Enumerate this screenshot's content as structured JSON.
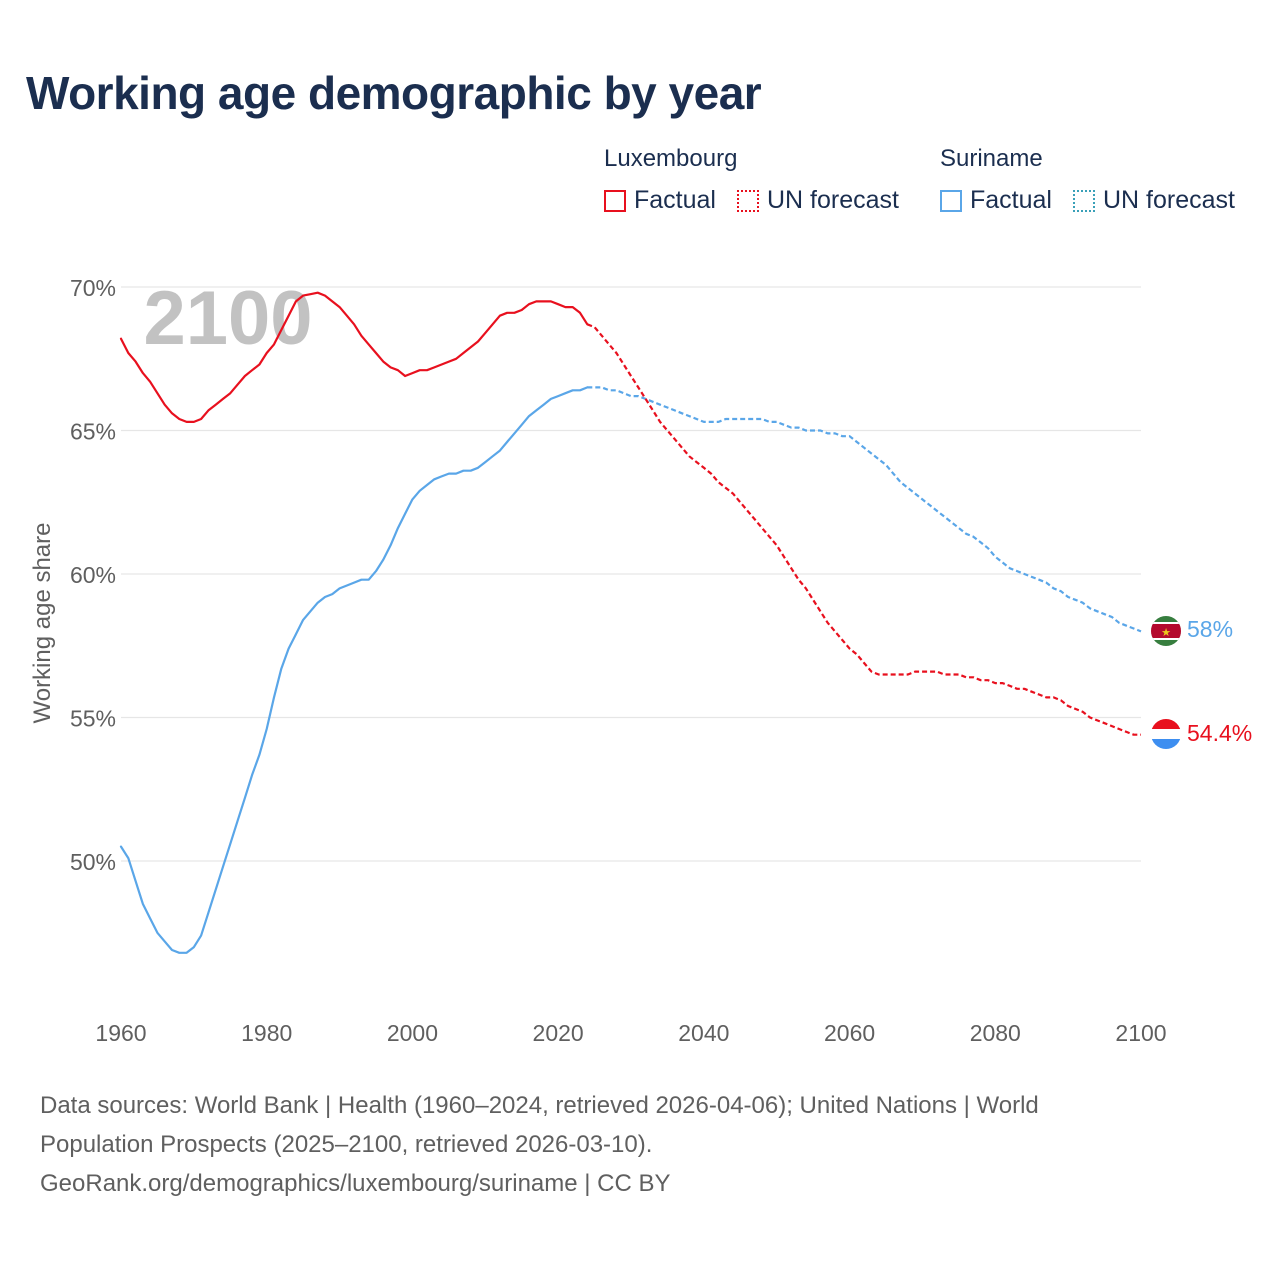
{
  "title": "Working age demographic by year",
  "legend": {
    "groups": [
      {
        "country": "Luxembourg",
        "factual": "Factual",
        "forecast": "UN forecast",
        "color": "#e8101e"
      },
      {
        "country": "Suriname",
        "factual": "Factual",
        "forecast": "UN forecast",
        "color": "#5aa6e8"
      }
    ]
  },
  "chart_data": {
    "type": "line",
    "title": "Working age demographic by year",
    "xlabel": "",
    "ylabel": "Working age share",
    "xlim": [
      1960,
      2100
    ],
    "ylim": [
      45,
      70
    ],
    "grid": true,
    "x_ticks": [
      "1960",
      "1980",
      "2000",
      "2020",
      "2040",
      "2060",
      "2080",
      "2100"
    ],
    "y_ticks": [
      "70%",
      "65%",
      "60%",
      "55%",
      "50%"
    ],
    "y_tick_values": [
      70,
      65,
      60,
      55,
      50
    ],
    "year_watermark": "2100",
    "series": [
      {
        "name": "Luxembourg",
        "color": "#e8101e",
        "end_label": "54.4%",
        "factual": [
          [
            1960,
            68.2
          ],
          [
            1961,
            67.7
          ],
          [
            1962,
            67.4
          ],
          [
            1963,
            67.0
          ],
          [
            1964,
            66.7
          ],
          [
            1965,
            66.3
          ],
          [
            1966,
            65.9
          ],
          [
            1967,
            65.6
          ],
          [
            1968,
            65.4
          ],
          [
            1969,
            65.3
          ],
          [
            1970,
            65.3
          ],
          [
            1971,
            65.4
          ],
          [
            1972,
            65.7
          ],
          [
            1973,
            65.9
          ],
          [
            1974,
            66.1
          ],
          [
            1975,
            66.3
          ],
          [
            1976,
            66.6
          ],
          [
            1977,
            66.9
          ],
          [
            1978,
            67.1
          ],
          [
            1979,
            67.3
          ],
          [
            1980,
            67.7
          ],
          [
            1981,
            68.0
          ],
          [
            1982,
            68.5
          ],
          [
            1983,
            69.0
          ],
          [
            1984,
            69.5
          ],
          [
            1985,
            69.7
          ],
          [
            1986,
            69.75
          ],
          [
            1987,
            69.8
          ],
          [
            1988,
            69.7
          ],
          [
            1989,
            69.5
          ],
          [
            1990,
            69.3
          ],
          [
            1991,
            69.0
          ],
          [
            1992,
            68.7
          ],
          [
            1993,
            68.3
          ],
          [
            1994,
            68.0
          ],
          [
            1995,
            67.7
          ],
          [
            1996,
            67.4
          ],
          [
            1997,
            67.2
          ],
          [
            1998,
            67.1
          ],
          [
            1999,
            66.9
          ],
          [
            2000,
            67.0
          ],
          [
            2001,
            67.1
          ],
          [
            2002,
            67.1
          ],
          [
            2003,
            67.2
          ],
          [
            2004,
            67.3
          ],
          [
            2005,
            67.4
          ],
          [
            2006,
            67.5
          ],
          [
            2007,
            67.7
          ],
          [
            2008,
            67.9
          ],
          [
            2009,
            68.1
          ],
          [
            2010,
            68.4
          ],
          [
            2011,
            68.7
          ],
          [
            2012,
            69.0
          ],
          [
            2013,
            69.1
          ],
          [
            2014,
            69.1
          ],
          [
            2015,
            69.2
          ],
          [
            2016,
            69.4
          ],
          [
            2017,
            69.5
          ],
          [
            2018,
            69.5
          ],
          [
            2019,
            69.5
          ],
          [
            2020,
            69.4
          ],
          [
            2021,
            69.3
          ],
          [
            2022,
            69.3
          ],
          [
            2023,
            69.1
          ],
          [
            2024,
            68.7
          ]
        ],
        "forecast": [
          [
            2024,
            68.7
          ],
          [
            2025,
            68.6
          ],
          [
            2026,
            68.3
          ],
          [
            2027,
            68.0
          ],
          [
            2028,
            67.7
          ],
          [
            2029,
            67.3
          ],
          [
            2030,
            66.9
          ],
          [
            2031,
            66.5
          ],
          [
            2032,
            66.1
          ],
          [
            2033,
            65.7
          ],
          [
            2034,
            65.3
          ],
          [
            2035,
            65.0
          ],
          [
            2036,
            64.7
          ],
          [
            2037,
            64.4
          ],
          [
            2038,
            64.1
          ],
          [
            2039,
            63.9
          ],
          [
            2040,
            63.7
          ],
          [
            2041,
            63.5
          ],
          [
            2042,
            63.2
          ],
          [
            2043,
            63.0
          ],
          [
            2044,
            62.8
          ],
          [
            2045,
            62.5
          ],
          [
            2046,
            62.2
          ],
          [
            2047,
            61.9
          ],
          [
            2048,
            61.6
          ],
          [
            2049,
            61.3
          ],
          [
            2050,
            61.0
          ],
          [
            2051,
            60.6
          ],
          [
            2052,
            60.2
          ],
          [
            2053,
            59.8
          ],
          [
            2054,
            59.5
          ],
          [
            2055,
            59.1
          ],
          [
            2056,
            58.7
          ],
          [
            2057,
            58.3
          ],
          [
            2058,
            58.0
          ],
          [
            2059,
            57.7
          ],
          [
            2060,
            57.4
          ],
          [
            2061,
            57.2
          ],
          [
            2062,
            56.9
          ],
          [
            2063,
            56.6
          ],
          [
            2064,
            56.5
          ],
          [
            2065,
            56.5
          ],
          [
            2066,
            56.5
          ],
          [
            2067,
            56.5
          ],
          [
            2068,
            56.5
          ],
          [
            2069,
            56.6
          ],
          [
            2070,
            56.6
          ],
          [
            2071,
            56.6
          ],
          [
            2072,
            56.6
          ],
          [
            2073,
            56.5
          ],
          [
            2074,
            56.5
          ],
          [
            2075,
            56.5
          ],
          [
            2076,
            56.4
          ],
          [
            2077,
            56.4
          ],
          [
            2078,
            56.3
          ],
          [
            2079,
            56.3
          ],
          [
            2080,
            56.2
          ],
          [
            2081,
            56.2
          ],
          [
            2082,
            56.1
          ],
          [
            2083,
            56.0
          ],
          [
            2084,
            56.0
          ],
          [
            2085,
            55.9
          ],
          [
            2086,
            55.8
          ],
          [
            2087,
            55.7
          ],
          [
            2088,
            55.7
          ],
          [
            2089,
            55.6
          ],
          [
            2090,
            55.4
          ],
          [
            2091,
            55.3
          ],
          [
            2092,
            55.2
          ],
          [
            2093,
            55.0
          ],
          [
            2094,
            54.9
          ],
          [
            2095,
            54.8
          ],
          [
            2096,
            54.7
          ],
          [
            2097,
            54.6
          ],
          [
            2098,
            54.5
          ],
          [
            2099,
            54.4
          ],
          [
            2100,
            54.4
          ]
        ]
      },
      {
        "name": "Suriname",
        "color": "#5aa6e8",
        "end_label": "58%",
        "factual": [
          [
            1960,
            50.5
          ],
          [
            1961,
            50.1
          ],
          [
            1962,
            49.3
          ],
          [
            1963,
            48.5
          ],
          [
            1964,
            48.0
          ],
          [
            1965,
            47.5
          ],
          [
            1966,
            47.2
          ],
          [
            1967,
            46.9
          ],
          [
            1968,
            46.8
          ],
          [
            1969,
            46.8
          ],
          [
            1970,
            47.0
          ],
          [
            1971,
            47.4
          ],
          [
            1972,
            48.2
          ],
          [
            1973,
            49.0
          ],
          [
            1974,
            49.8
          ],
          [
            1975,
            50.6
          ],
          [
            1976,
            51.4
          ],
          [
            1977,
            52.2
          ],
          [
            1978,
            53.0
          ],
          [
            1979,
            53.7
          ],
          [
            1980,
            54.6
          ],
          [
            1981,
            55.7
          ],
          [
            1982,
            56.7
          ],
          [
            1983,
            57.4
          ],
          [
            1984,
            57.9
          ],
          [
            1985,
            58.4
          ],
          [
            1986,
            58.7
          ],
          [
            1987,
            59.0
          ],
          [
            1988,
            59.2
          ],
          [
            1989,
            59.3
          ],
          [
            1990,
            59.5
          ],
          [
            1991,
            59.6
          ],
          [
            1992,
            59.7
          ],
          [
            1993,
            59.8
          ],
          [
            1994,
            59.8
          ],
          [
            1995,
            60.1
          ],
          [
            1996,
            60.5
          ],
          [
            1997,
            61.0
          ],
          [
            1998,
            61.6
          ],
          [
            1999,
            62.1
          ],
          [
            2000,
            62.6
          ],
          [
            2001,
            62.9
          ],
          [
            2002,
            63.1
          ],
          [
            2003,
            63.3
          ],
          [
            2004,
            63.4
          ],
          [
            2005,
            63.5
          ],
          [
            2006,
            63.5
          ],
          [
            2007,
            63.6
          ],
          [
            2008,
            63.6
          ],
          [
            2009,
            63.7
          ],
          [
            2010,
            63.9
          ],
          [
            2011,
            64.1
          ],
          [
            2012,
            64.3
          ],
          [
            2013,
            64.6
          ],
          [
            2014,
            64.9
          ],
          [
            2015,
            65.2
          ],
          [
            2016,
            65.5
          ],
          [
            2017,
            65.7
          ],
          [
            2018,
            65.9
          ],
          [
            2019,
            66.1
          ],
          [
            2020,
            66.2
          ],
          [
            2021,
            66.3
          ],
          [
            2022,
            66.4
          ],
          [
            2023,
            66.4
          ],
          [
            2024,
            66.5
          ]
        ],
        "forecast": [
          [
            2024,
            66.5
          ],
          [
            2025,
            66.5
          ],
          [
            2026,
            66.5
          ],
          [
            2027,
            66.4
          ],
          [
            2028,
            66.4
          ],
          [
            2029,
            66.3
          ],
          [
            2030,
            66.2
          ],
          [
            2031,
            66.2
          ],
          [
            2032,
            66.1
          ],
          [
            2033,
            66.0
          ],
          [
            2034,
            65.9
          ],
          [
            2035,
            65.8
          ],
          [
            2036,
            65.7
          ],
          [
            2037,
            65.6
          ],
          [
            2038,
            65.5
          ],
          [
            2039,
            65.4
          ],
          [
            2040,
            65.3
          ],
          [
            2041,
            65.3
          ],
          [
            2042,
            65.3
          ],
          [
            2043,
            65.4
          ],
          [
            2044,
            65.4
          ],
          [
            2045,
            65.4
          ],
          [
            2046,
            65.4
          ],
          [
            2047,
            65.4
          ],
          [
            2048,
            65.4
          ],
          [
            2049,
            65.3
          ],
          [
            2050,
            65.3
          ],
          [
            2051,
            65.2
          ],
          [
            2052,
            65.1
          ],
          [
            2053,
            65.1
          ],
          [
            2054,
            65.0
          ],
          [
            2055,
            65.0
          ],
          [
            2056,
            65.0
          ],
          [
            2057,
            64.9
          ],
          [
            2058,
            64.9
          ],
          [
            2059,
            64.8
          ],
          [
            2060,
            64.8
          ],
          [
            2061,
            64.6
          ],
          [
            2062,
            64.4
          ],
          [
            2063,
            64.2
          ],
          [
            2064,
            64.0
          ],
          [
            2065,
            63.8
          ],
          [
            2066,
            63.5
          ],
          [
            2067,
            63.2
          ],
          [
            2068,
            63.0
          ],
          [
            2069,
            62.8
          ],
          [
            2070,
            62.6
          ],
          [
            2071,
            62.4
          ],
          [
            2072,
            62.2
          ],
          [
            2073,
            62.0
          ],
          [
            2074,
            61.8
          ],
          [
            2075,
            61.6
          ],
          [
            2076,
            61.4
          ],
          [
            2077,
            61.3
          ],
          [
            2078,
            61.1
          ],
          [
            2079,
            60.9
          ],
          [
            2080,
            60.6
          ],
          [
            2081,
            60.4
          ],
          [
            2082,
            60.2
          ],
          [
            2083,
            60.1
          ],
          [
            2084,
            60.0
          ],
          [
            2085,
            59.9
          ],
          [
            2086,
            59.8
          ],
          [
            2087,
            59.7
          ],
          [
            2088,
            59.5
          ],
          [
            2089,
            59.4
          ],
          [
            2090,
            59.2
          ],
          [
            2091,
            59.1
          ],
          [
            2092,
            59.0
          ],
          [
            2093,
            58.8
          ],
          [
            2094,
            58.7
          ],
          [
            2095,
            58.6
          ],
          [
            2096,
            58.5
          ],
          [
            2097,
            58.3
          ],
          [
            2098,
            58.2
          ],
          [
            2099,
            58.1
          ],
          [
            2100,
            58.0
          ]
        ]
      }
    ]
  },
  "footer": {
    "line1": "Data sources: World Bank | Health (1960–2024, retrieved 2026-04-06); United Nations | World",
    "line2": "Population Prospects (2025–2100, retrieved 2026-03-10).",
    "line3": "GeoRank.org/demographics/luxembourg/suriname | CC BY"
  },
  "flags": {
    "luxembourg": "luxembourg-flag-icon",
    "suriname": "suriname-flag-icon",
    "suriname_star": "★"
  }
}
